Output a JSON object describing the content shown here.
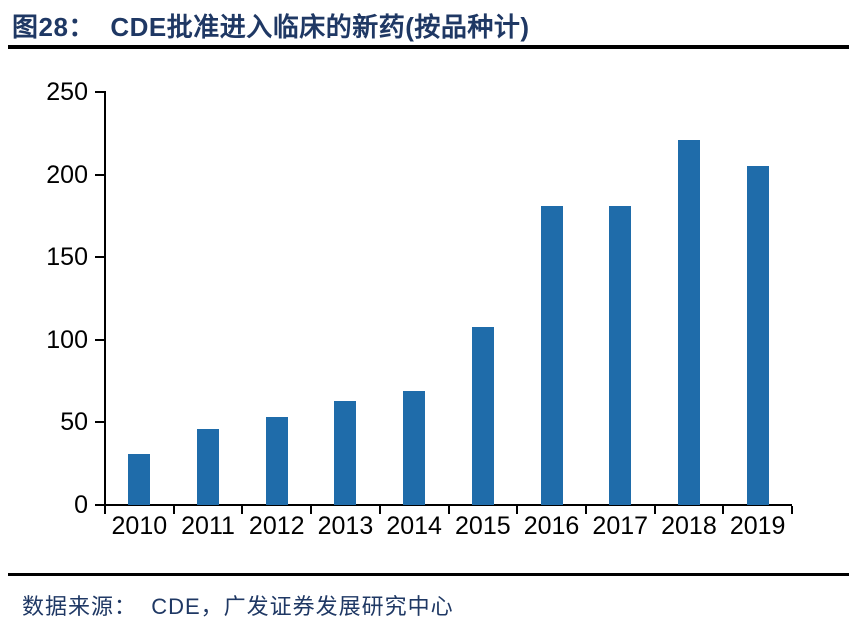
{
  "header": {
    "title": "图28：  CDE批准进入临床的新药(按品种计)"
  },
  "footer": {
    "source": "数据来源：  CDE，广发证券发展研究中心"
  },
  "colors": {
    "bar": "#1F6CAA",
    "heading_text": "#1F3864",
    "axis": "#000000"
  },
  "chart_data": {
    "type": "bar",
    "title": "图28：CDE批准进入临床的新药(按品种计)",
    "categories": [
      "2010",
      "2011",
      "2012",
      "2013",
      "2014",
      "2015",
      "2016",
      "2017",
      "2018",
      "2019"
    ],
    "values": [
      31,
      46,
      53,
      63,
      69,
      108,
      181,
      181,
      221,
      205
    ],
    "xlabel": "",
    "ylabel": "",
    "ylim": [
      0,
      250
    ],
    "ytick_step": 50,
    "yticks": [
      0,
      50,
      100,
      150,
      200,
      250
    ],
    "grid": false,
    "legend": "none",
    "bar_color": "#1F6CAA",
    "source": "数据来源：CDE，广发证券发展研究中心"
  }
}
